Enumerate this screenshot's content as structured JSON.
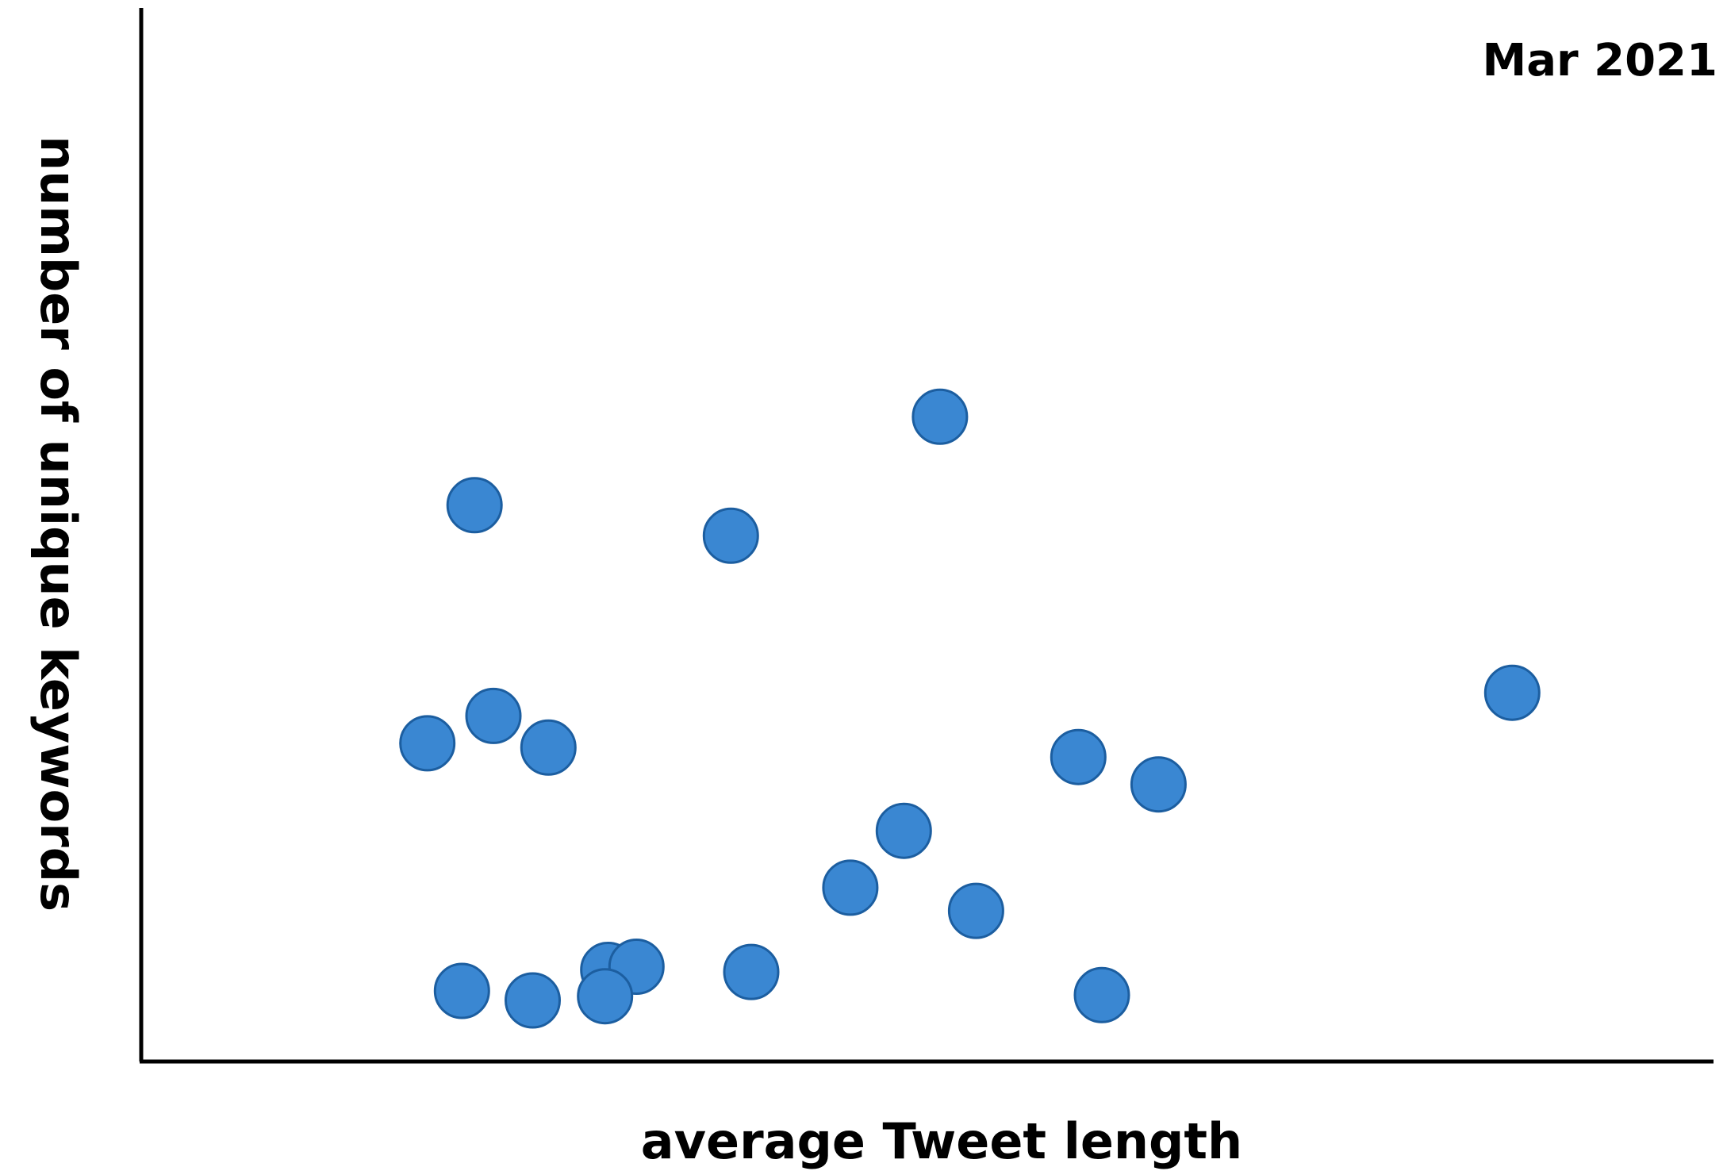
{
  "chart_data": {
    "type": "scatter",
    "title": "Mar 2021",
    "xlabel": "average Tweet length",
    "ylabel": "number of unique keywords",
    "xlim": [
      0,
      100
    ],
    "ylim": [
      0,
      100
    ],
    "grid": false,
    "legend": "none",
    "colors": {
      "point_fill": "#3a87d2",
      "point_stroke": "#1c5ea0",
      "axis": "#000000"
    },
    "points": [
      {
        "x": 21.2,
        "y": 52.8
      },
      {
        "x": 37.5,
        "y": 49.9
      },
      {
        "x": 50.8,
        "y": 61.2
      },
      {
        "x": 18.2,
        "y": 30.2
      },
      {
        "x": 22.4,
        "y": 32.8
      },
      {
        "x": 25.9,
        "y": 29.8
      },
      {
        "x": 87.2,
        "y": 35.0
      },
      {
        "x": 59.6,
        "y": 28.9
      },
      {
        "x": 64.7,
        "y": 26.3
      },
      {
        "x": 48.5,
        "y": 21.9
      },
      {
        "x": 45.1,
        "y": 16.5
      },
      {
        "x": 53.1,
        "y": 14.3
      },
      {
        "x": 20.4,
        "y": 6.7
      },
      {
        "x": 24.9,
        "y": 5.8
      },
      {
        "x": 29.7,
        "y": 8.7
      },
      {
        "x": 31.5,
        "y": 9.0
      },
      {
        "x": 29.5,
        "y": 6.2
      },
      {
        "x": 38.8,
        "y": 8.5
      },
      {
        "x": 61.1,
        "y": 6.3
      }
    ]
  }
}
